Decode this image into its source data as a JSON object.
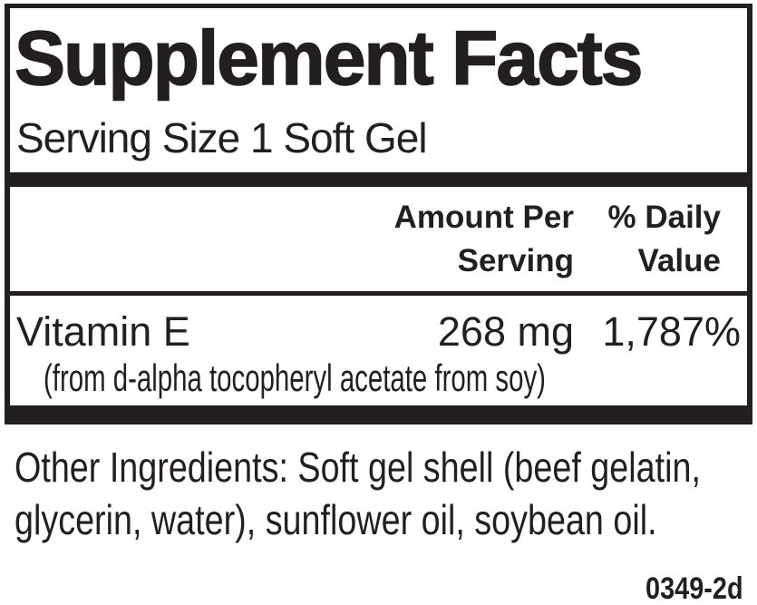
{
  "supplement_label": {
    "title": "Supplement Facts",
    "serving_size": "Serving Size 1 Soft Gel",
    "headers": {
      "amount_line1": "Amount Per",
      "amount_line2": "Serving",
      "daily_value_line1": "% Daily",
      "daily_value_line2": "Value"
    },
    "nutrients": [
      {
        "name": "Vitamin E",
        "source_note": "(from d-alpha tocopheryl acetate from soy)",
        "amount": "268 mg",
        "daily_value": "1,787%"
      }
    ],
    "other_ingredients": "Other Ingredients: Soft gel shell (beef gelatin, glycerin, water), sunflower oil, soybean oil.",
    "product_code": "0349-2d",
    "colors": {
      "ink": "#231f20",
      "background": "#ffffff"
    }
  }
}
